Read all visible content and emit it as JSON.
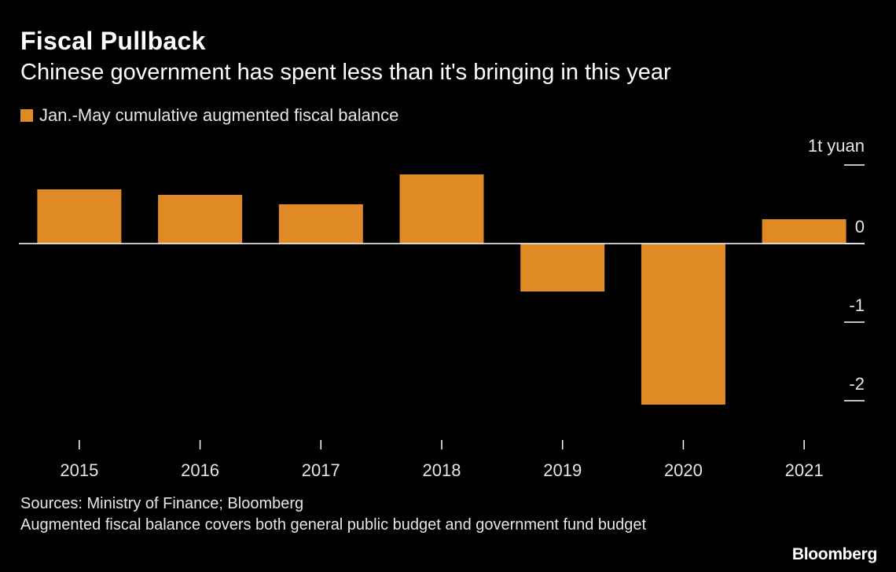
{
  "header": {
    "title": "Fiscal Pullback",
    "subtitle": "Chinese government has spent less than it's bringing in this year"
  },
  "legend": {
    "label": "Jan.-May cumulative augmented fiscal balance",
    "color": "#E08A26"
  },
  "axis": {
    "unit_label": "1t yuan"
  },
  "chart_data": {
    "type": "bar",
    "categories": [
      "2015",
      "2016",
      "2017",
      "2018",
      "2019",
      "2020",
      "2021"
    ],
    "series": [
      {
        "name": "Jan.-May cumulative augmented fiscal balance",
        "values": [
          0.69,
          0.62,
          0.5,
          0.88,
          -0.61,
          -2.05,
          0.31
        ]
      }
    ],
    "ylim": [
      -2.3,
      1.0
    ],
    "yticks": [
      1,
      0,
      -1,
      -2
    ],
    "ytick_labels": [
      "1t yuan",
      "0",
      "-1",
      "-2"
    ],
    "grid": false,
    "legend_position": "top-left",
    "colors": {
      "bar": "#E08A26",
      "background": "#000000",
      "text": "#FFFFFF"
    }
  },
  "footer": {
    "sources": "Sources: Ministry of Finance; Bloomberg",
    "note": "Augmented fiscal balance covers both general public budget and government fund budget"
  },
  "brand": "Bloomberg"
}
